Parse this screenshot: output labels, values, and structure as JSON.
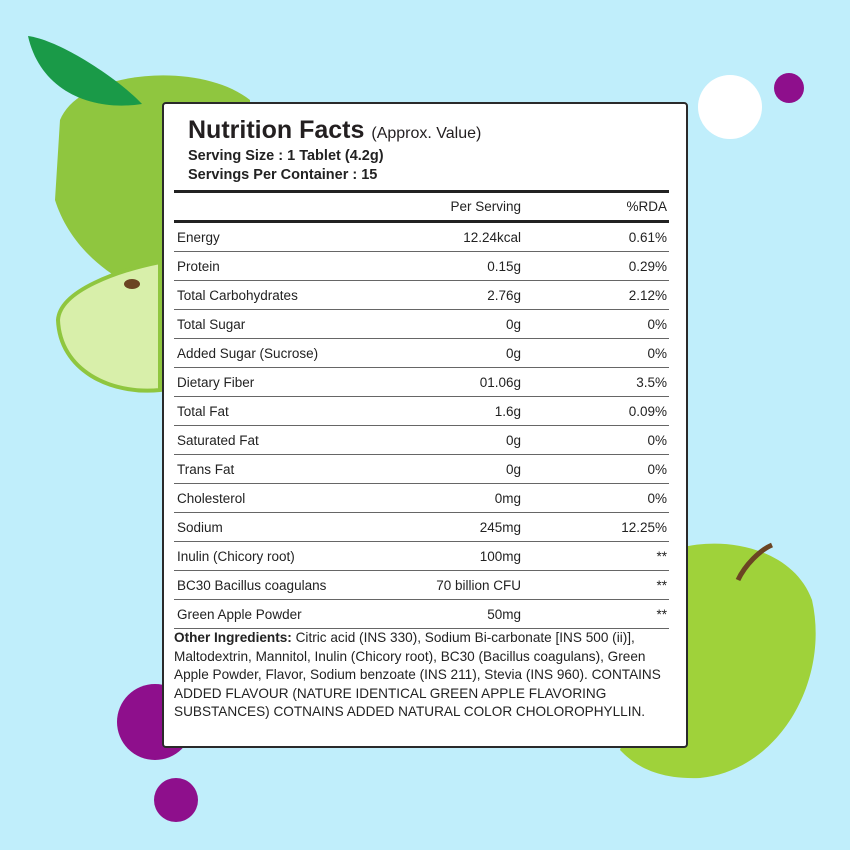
{
  "title": "Nutrition Facts",
  "title_note": "(Approx. Value)",
  "serving_size": "Serving Size : 1 Tablet (4.2g)",
  "servings_per_container": "Servings Per Container : 15",
  "columns": [
    "",
    "Per Serving",
    "%RDA"
  ],
  "rows": [
    [
      "Energy",
      "12.24kcal",
      "0.61%"
    ],
    [
      "Protein",
      "0.15g",
      "0.29%"
    ],
    [
      "Total Carbohydrates",
      "2.76g",
      "2.12%"
    ],
    [
      "Total Sugar",
      "0g",
      "0%"
    ],
    [
      "Added Sugar (Sucrose)",
      "0g",
      "0%"
    ],
    [
      "Dietary Fiber",
      "01.06g",
      "3.5%"
    ],
    [
      "Total Fat",
      "1.6g",
      "0.09%"
    ],
    [
      "Saturated Fat",
      "0g",
      "0%"
    ],
    [
      "Trans Fat",
      "0g",
      "0%"
    ],
    [
      "Cholesterol",
      "0mg",
      "0%"
    ],
    [
      "Sodium",
      "245mg",
      "12.25%"
    ],
    [
      "Inulin (Chicory root)",
      "100mg",
      "**"
    ],
    [
      "BC30 Bacillus coagulans",
      "70 billion CFU",
      "**"
    ],
    [
      "Green Apple Powder",
      "50mg",
      "**"
    ]
  ],
  "other_label": "Other Ingredients:",
  "other_text": " Citric acid (INS 330), Sodium Bi-carbonate [INS 500 (ii)], Maltodextrin, Mannitol, Inulin (Chicory root), BC30 (Bacillus coagulans), Green Apple Powder, Flavor, Sodium benzoate (INS 211), Stevia (INS 960). CONTAINS ADDED FLAVOUR (NATURE IDENTICAL GREEN APPLE FLAVORING SUBSTANCES) COTNAINS ADDED NATURAL COLOR CHOLOROPHYLLIN.",
  "colors": {
    "background": "#c0eefb",
    "apple_green": "#8fc63f",
    "leaf": "#1a9a48",
    "purple": "#8e0f8c"
  }
}
